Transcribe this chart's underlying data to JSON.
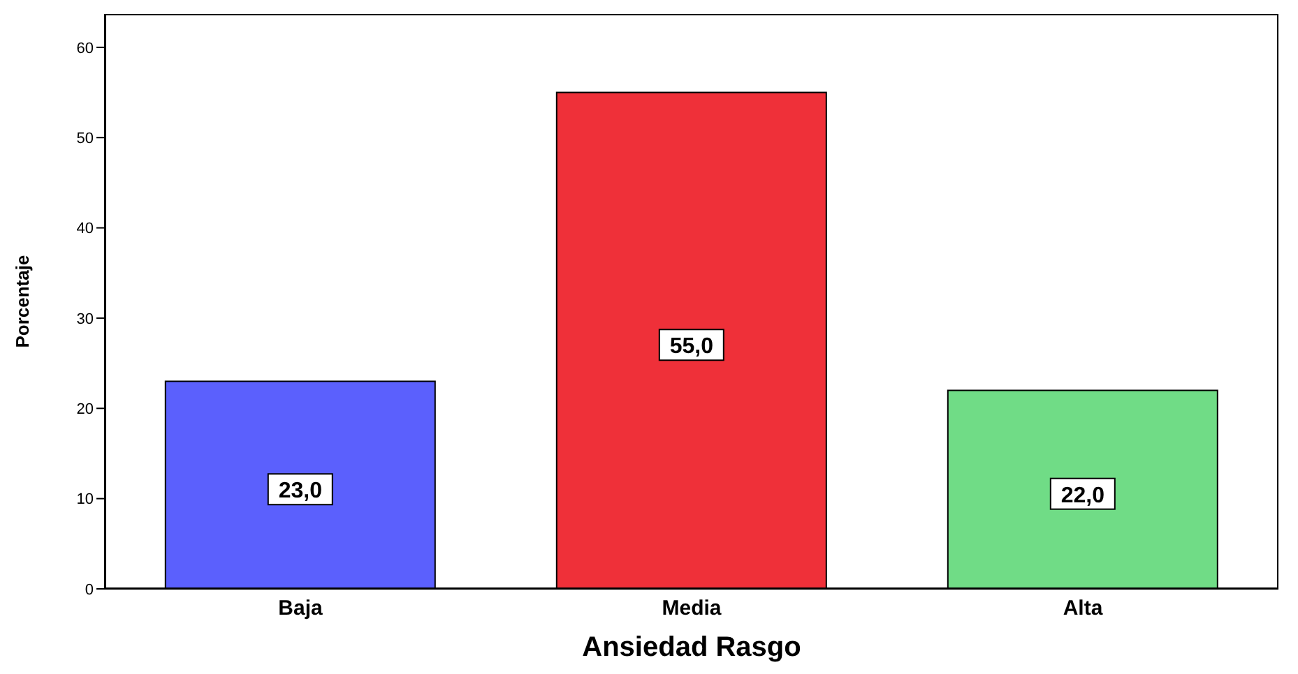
{
  "chart_data": {
    "type": "bar",
    "xlabel": "Ansiedad Rasgo",
    "ylabel": "Porcentaje",
    "categories": [
      "Baja",
      "Media",
      "Alta"
    ],
    "values": [
      23.0,
      55.0,
      22.0
    ],
    "colors": [
      "#5b60fd",
      "#ef3039",
      "#70dc86"
    ],
    "value_labels": [
      "23,0",
      "55,0",
      "22,0"
    ],
    "ylim": [
      0,
      63.7
    ],
    "yticks": [
      0,
      10,
      20,
      30,
      40,
      50,
      60
    ],
    "grid": false,
    "legend": false
  }
}
